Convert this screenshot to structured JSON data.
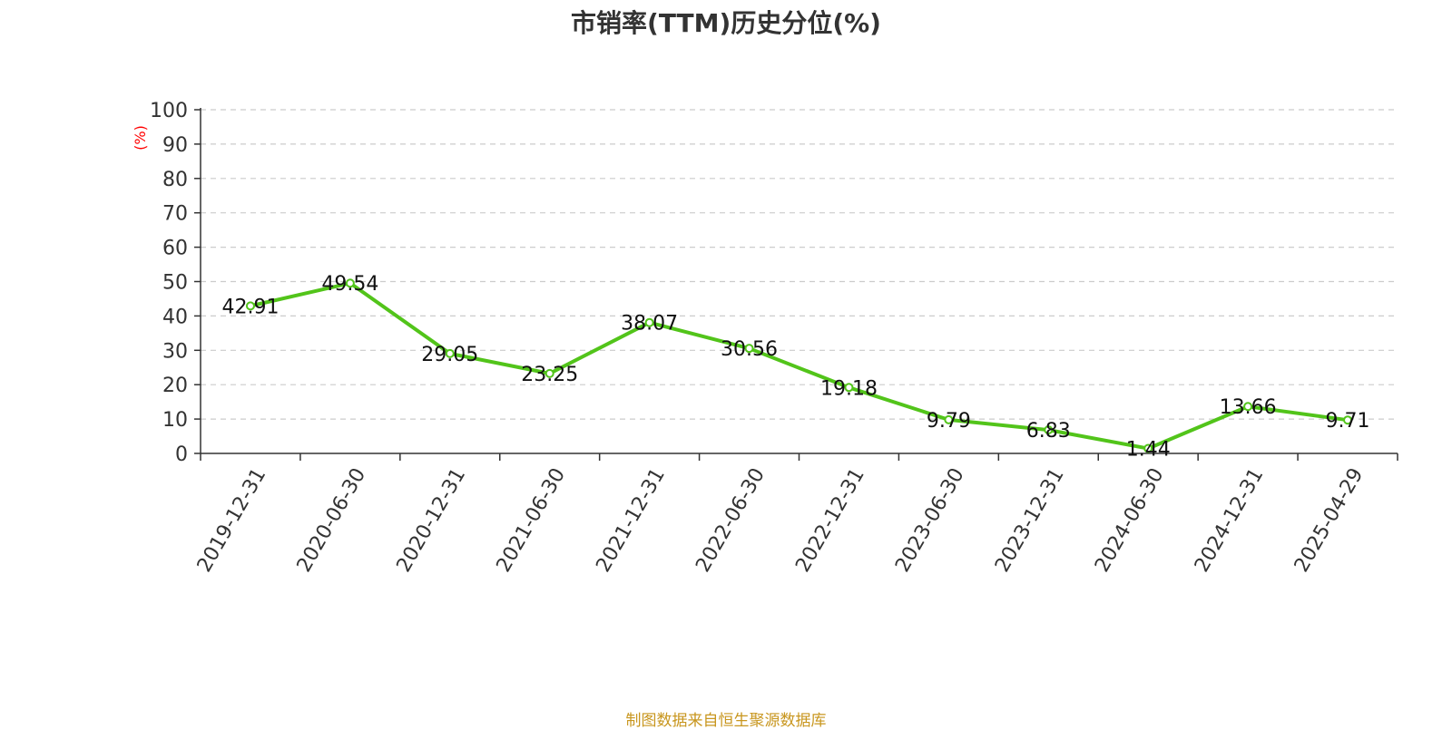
{
  "chart_data": {
    "type": "line",
    "title": "市销率(TTM)历史分位(%)",
    "ylabel": "(%)",
    "xlabel": "",
    "ylim": [
      0,
      100
    ],
    "yticks": [
      0,
      10,
      20,
      30,
      40,
      50,
      60,
      70,
      80,
      90,
      100
    ],
    "grid": true,
    "categories": [
      "2019-12-31",
      "2020-06-30",
      "2020-12-31",
      "2021-06-30",
      "2021-12-31",
      "2022-06-30",
      "2022-12-31",
      "2023-06-30",
      "2023-12-31",
      "2024-06-30",
      "2024-12-31",
      "2025-04-29"
    ],
    "series": [
      {
        "values": [
          42.91,
          49.54,
          29.05,
          23.25,
          38.07,
          30.56,
          19.18,
          9.79,
          6.83,
          1.44,
          13.66,
          9.71
        ],
        "labels": [
          "42.91",
          "49.54",
          "29.05",
          "23.25",
          "38.07",
          "30.56",
          "19.18",
          "9.79",
          "6.83",
          "1.44",
          "13.66",
          "9.71"
        ],
        "color": "#52c41a"
      }
    ],
    "ylabel_color": "#ff0000"
  },
  "footer": {
    "source_text": "制图数据来自恒生聚源数据库",
    "color": "#c8961e"
  }
}
